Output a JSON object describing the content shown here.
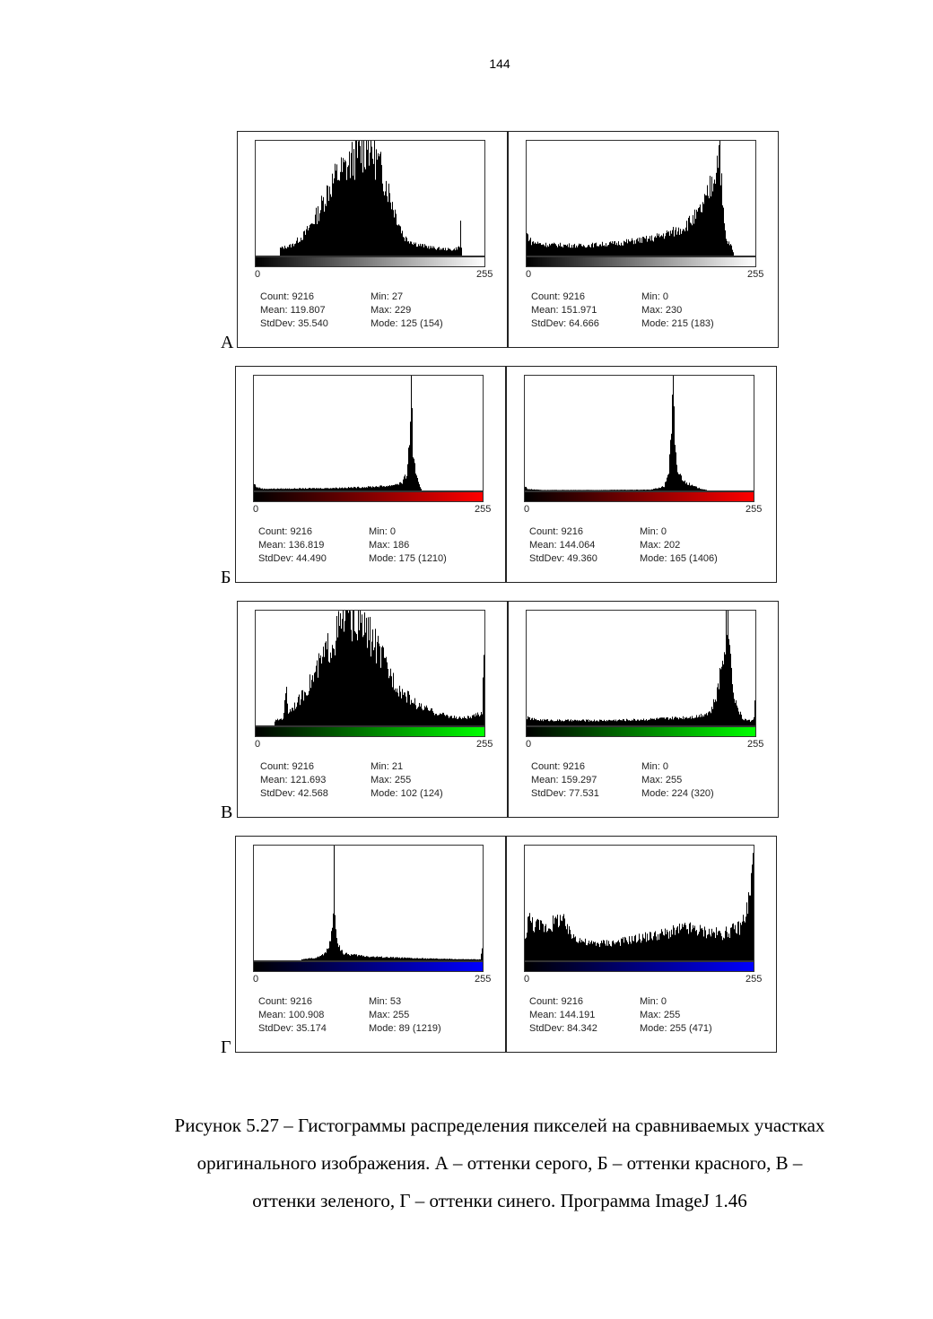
{
  "page_number": "144",
  "rows": [
    {
      "letter": "А",
      "ramp": [
        "#000000",
        "#ffffff"
      ],
      "panels": [
        {
          "min_label": "0",
          "max_label": "255",
          "count": "Count: 9216",
          "mean": "Mean: 119.807",
          "stddev": "StdDev: 35.540",
          "min": "Min: 27",
          "max": "Max: 229",
          "mode": "Mode: 125 (154)"
        },
        {
          "min_label": "0",
          "max_label": "255",
          "count": "Count: 9216",
          "mean": "Mean: 151.971",
          "stddev": "StdDev: 64.666",
          "min": "Min: 0",
          "max": "Max: 230",
          "mode": "Mode: 215 (183)"
        }
      ]
    },
    {
      "letter": "Б",
      "ramp": [
        "#000000",
        "#ff0000"
      ],
      "panels": [
        {
          "min_label": "0",
          "max_label": "255",
          "count": "Count: 9216",
          "mean": "Mean: 136.819",
          "stddev": "StdDev: 44.490",
          "min": "Min: 0",
          "max": "Max: 186",
          "mode": "Mode: 175 (1210)"
        },
        {
          "min_label": "0",
          "max_label": "255",
          "count": "Count: 9216",
          "mean": "Mean: 144.064",
          "stddev": "StdDev: 49.360",
          "min": "Min: 0",
          "max": "Max: 202",
          "mode": "Mode: 165 (1406)"
        }
      ]
    },
    {
      "letter": "В",
      "ramp": [
        "#000000",
        "#00ff00"
      ],
      "panels": [
        {
          "min_label": "0",
          "max_label": "255",
          "count": "Count: 9216",
          "mean": "Mean: 121.693",
          "stddev": "StdDev: 42.568",
          "min": "Min: 21",
          "max": "Max: 255",
          "mode": "Mode: 102 (124)"
        },
        {
          "min_label": "0",
          "max_label": "255",
          "count": "Count: 9216",
          "mean": "Mean: 159.297",
          "stddev": "StdDev: 77.531",
          "min": "Min: 0",
          "max": "Max: 255",
          "mode": "Mode: 224 (320)"
        }
      ]
    },
    {
      "letter": "Г",
      "ramp": [
        "#000000",
        "#0000ff"
      ],
      "panels": [
        {
          "min_label": "0",
          "max_label": "255",
          "count": "Count: 9216",
          "mean": "Mean: 100.908",
          "stddev": "StdDev: 35.174",
          "min": "Min: 53",
          "max": "Max: 255",
          "mode": "Mode: 89 (1219)"
        },
        {
          "min_label": "0",
          "max_label": "255",
          "count": "Count: 9216",
          "mean": "Mean: 144.191",
          "stddev": "StdDev: 84.342",
          "min": "Min: 0",
          "max": "Max: 255",
          "mode": "Mode: 255 (471)"
        }
      ]
    }
  ],
  "caption": {
    "line1": "Рисунок 5.27 – Гистограммы распределения пикселей на сравниваемых участках",
    "line2": "оригинального изображения. А – оттенки серого, Б – оттенки красного, В –",
    "line3": "оттенки зеленого, Г – оттенки синего. Программа ImageJ 1.46"
  },
  "chart_data": [
    {
      "type": "bar",
      "channel": "gray",
      "x_range": [
        0,
        255
      ],
      "stats": {
        "count": 9216,
        "mean": 119.807,
        "stddev": 35.54,
        "min": 27,
        "max": 229,
        "mode": 125,
        "mode_count": 154
      },
      "envelope": [
        [
          0,
          0
        ],
        [
          26,
          0
        ],
        [
          27,
          10
        ],
        [
          40,
          14
        ],
        [
          55,
          30
        ],
        [
          70,
          60
        ],
        [
          80,
          90
        ],
        [
          90,
          110
        ],
        [
          100,
          120
        ],
        [
          110,
          135
        ],
        [
          120,
          145
        ],
        [
          125,
          154
        ],
        [
          135,
          130
        ],
        [
          145,
          100
        ],
        [
          155,
          60
        ],
        [
          165,
          25
        ],
        [
          180,
          15
        ],
        [
          200,
          10
        ],
        [
          220,
          8
        ],
        [
          227,
          12
        ],
        [
          228,
          48
        ],
        [
          229,
          10
        ],
        [
          230,
          0
        ],
        [
          255,
          0
        ]
      ]
    },
    {
      "type": "bar",
      "channel": "gray",
      "x_range": [
        0,
        255
      ],
      "stats": {
        "count": 9216,
        "mean": 151.971,
        "stddev": 64.666,
        "min": 0,
        "max": 230,
        "mode": 215,
        "mode_count": 183
      },
      "envelope": [
        [
          0,
          35
        ],
        [
          5,
          22
        ],
        [
          20,
          18
        ],
        [
          60,
          16
        ],
        [
          100,
          20
        ],
        [
          140,
          28
        ],
        [
          170,
          42
        ],
        [
          190,
          65
        ],
        [
          200,
          90
        ],
        [
          208,
          130
        ],
        [
          212,
          155
        ],
        [
          215,
          183
        ],
        [
          218,
          80
        ],
        [
          222,
          25
        ],
        [
          228,
          15
        ],
        [
          230,
          5
        ],
        [
          231,
          0
        ],
        [
          255,
          0
        ]
      ]
    },
    {
      "type": "bar",
      "channel": "red",
      "x_range": [
        0,
        255
      ],
      "stats": {
        "count": 9216,
        "mean": 136.819,
        "stddev": 44.49,
        "min": 0,
        "max": 186,
        "mode": 175,
        "mode_count": 1210
      },
      "envelope": [
        [
          0,
          70
        ],
        [
          3,
          35
        ],
        [
          10,
          18
        ],
        [
          40,
          20
        ],
        [
          80,
          25
        ],
        [
          120,
          35
        ],
        [
          150,
          50
        ],
        [
          165,
          85
        ],
        [
          170,
          180
        ],
        [
          173,
          500
        ],
        [
          175,
          1210
        ],
        [
          177,
          420
        ],
        [
          180,
          160
        ],
        [
          184,
          60
        ],
        [
          186,
          20
        ],
        [
          187,
          0
        ],
        [
          255,
          0
        ]
      ]
    },
    {
      "type": "bar",
      "channel": "red",
      "x_range": [
        0,
        255
      ],
      "stats": {
        "count": 9216,
        "mean": 144.064,
        "stddev": 49.36,
        "min": 0,
        "max": 202,
        "mode": 165,
        "mode_count": 1406
      },
      "envelope": [
        [
          0,
          50
        ],
        [
          3,
          18
        ],
        [
          20,
          6
        ],
        [
          80,
          6
        ],
        [
          140,
          10
        ],
        [
          155,
          50
        ],
        [
          160,
          250
        ],
        [
          163,
          700
        ],
        [
          165,
          1406
        ],
        [
          167,
          500
        ],
        [
          170,
          240
        ],
        [
          178,
          110
        ],
        [
          186,
          60
        ],
        [
          195,
          25
        ],
        [
          202,
          8
        ],
        [
          203,
          0
        ],
        [
          255,
          0
        ]
      ]
    },
    {
      "type": "bar",
      "channel": "green",
      "x_range": [
        0,
        255
      ],
      "stats": {
        "count": 9216,
        "mean": 121.693,
        "stddev": 42.568,
        "min": 21,
        "max": 255,
        "mode": 102,
        "mode_count": 124
      },
      "envelope": [
        [
          0,
          0
        ],
        [
          20,
          0
        ],
        [
          21,
          5
        ],
        [
          30,
          8
        ],
        [
          34,
          40
        ],
        [
          36,
          15
        ],
        [
          50,
          30
        ],
        [
          65,
          55
        ],
        [
          80,
          85
        ],
        [
          95,
          110
        ],
        [
          102,
          124
        ],
        [
          115,
          115
        ],
        [
          130,
          95
        ],
        [
          145,
          65
        ],
        [
          160,
          40
        ],
        [
          180,
          22
        ],
        [
          200,
          14
        ],
        [
          225,
          8
        ],
        [
          240,
          9
        ],
        [
          252,
          14
        ],
        [
          254,
          92
        ],
        [
          255,
          40
        ]
      ]
    },
    {
      "type": "bar",
      "channel": "green",
      "x_range": [
        0,
        255
      ],
      "stats": {
        "count": 9216,
        "mean": 159.297,
        "stddev": 77.531,
        "min": 0,
        "max": 255,
        "mode": 224,
        "mode_count": 320
      },
      "envelope": [
        [
          0,
          22
        ],
        [
          10,
          16
        ],
        [
          40,
          14
        ],
        [
          80,
          14
        ],
        [
          120,
          16
        ],
        [
          160,
          20
        ],
        [
          190,
          26
        ],
        [
          205,
          40
        ],
        [
          212,
          90
        ],
        [
          218,
          200
        ],
        [
          222,
          280
        ],
        [
          224,
          320
        ],
        [
          227,
          190
        ],
        [
          232,
          70
        ],
        [
          240,
          20
        ],
        [
          250,
          12
        ],
        [
          253,
          25
        ],
        [
          254,
          90
        ],
        [
          255,
          40
        ]
      ]
    },
    {
      "type": "bar",
      "channel": "blue",
      "x_range": [
        0,
        255
      ],
      "stats": {
        "count": 9216,
        "mean": 100.908,
        "stddev": 35.174,
        "min": 53,
        "max": 255,
        "mode": 89,
        "mode_count": 1219
      },
      "envelope": [
        [
          0,
          0
        ],
        [
          52,
          0
        ],
        [
          53,
          10
        ],
        [
          70,
          30
        ],
        [
          80,
          80
        ],
        [
          86,
          260
        ],
        [
          88,
          520
        ],
        [
          89,
          1219
        ],
        [
          90,
          420
        ],
        [
          94,
          160
        ],
        [
          100,
          70
        ],
        [
          130,
          40
        ],
        [
          180,
          22
        ],
        [
          230,
          12
        ],
        [
          252,
          10
        ],
        [
          254,
          120
        ],
        [
          255,
          30
        ]
      ]
    },
    {
      "type": "bar",
      "channel": "blue",
      "x_range": [
        0,
        255
      ],
      "stats": {
        "count": 9216,
        "mean": 144.191,
        "stddev": 84.342,
        "min": 0,
        "max": 255,
        "mode": 255,
        "mode_count": 471
      },
      "envelope": [
        [
          0,
          80
        ],
        [
          3,
          180
        ],
        [
          10,
          150
        ],
        [
          25,
          140
        ],
        [
          40,
          180
        ],
        [
          50,
          110
        ],
        [
          70,
          70
        ],
        [
          100,
          75
        ],
        [
          130,
          95
        ],
        [
          160,
          115
        ],
        [
          180,
          135
        ],
        [
          200,
          120
        ],
        [
          220,
          110
        ],
        [
          240,
          140
        ],
        [
          248,
          220
        ],
        [
          252,
          330
        ],
        [
          255,
          471
        ]
      ]
    }
  ]
}
